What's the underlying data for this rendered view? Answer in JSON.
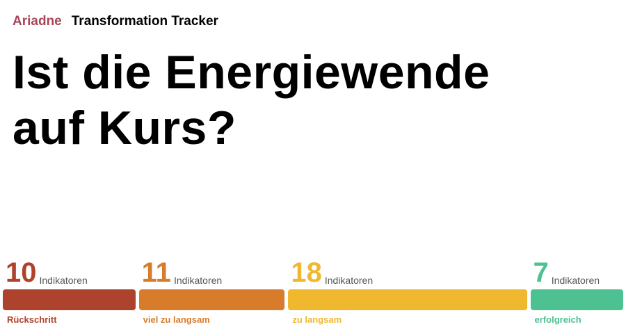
{
  "header": {
    "brand": "Ariadne",
    "product": "Transformation Tracker"
  },
  "title_lines": [
    "Ist die Energiewende",
    "auf Kurs?"
  ],
  "chart_data": {
    "type": "bar",
    "unit": "Indikatoren",
    "categories": [
      "Rückschritt",
      "viel zu langsam",
      "zu langsam",
      "erfolgreich"
    ],
    "values": [
      10,
      11,
      18,
      7
    ],
    "colors": [
      "#ad432c",
      "#d77c2b",
      "#efb82e",
      "#4ec192"
    ]
  }
}
